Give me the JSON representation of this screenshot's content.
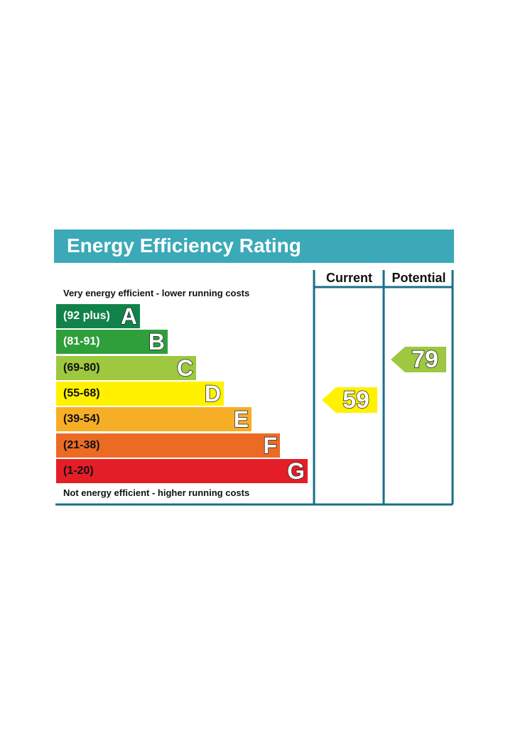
{
  "chart_data": {
    "type": "table",
    "title": "Energy Efficiency Rating",
    "columns": [
      "Current",
      "Potential"
    ],
    "top_caption": "Very energy efficient - lower running costs",
    "bottom_caption": "Not energy efficient - higher running costs",
    "bands": [
      {
        "letter": "A",
        "range": "(92 plus)",
        "color": "#11834a",
        "text_color": "#ffffff"
      },
      {
        "letter": "B",
        "range": "(81-91)",
        "color": "#2e9f3a",
        "text_color": "#ffffff"
      },
      {
        "letter": "C",
        "range": "(69-80)",
        "color": "#9dc83f",
        "text_color": "#111111"
      },
      {
        "letter": "D",
        "range": "(55-68)",
        "color": "#fff100",
        "text_color": "#111111"
      },
      {
        "letter": "E",
        "range": "(39-54)",
        "color": "#f7ae27",
        "text_color": "#111111"
      },
      {
        "letter": "F",
        "range": "(21-38)",
        "color": "#ec6b24",
        "text_color": "#111111"
      },
      {
        "letter": "G",
        "range": "(1-20)",
        "color": "#e31e27",
        "text_color": "#111111"
      }
    ],
    "current": {
      "value": 59,
      "band": "D",
      "color": "#fff100"
    },
    "potential": {
      "value": 79,
      "band": "C",
      "color": "#9dc83f"
    },
    "frame_color": "#1a6f88"
  }
}
